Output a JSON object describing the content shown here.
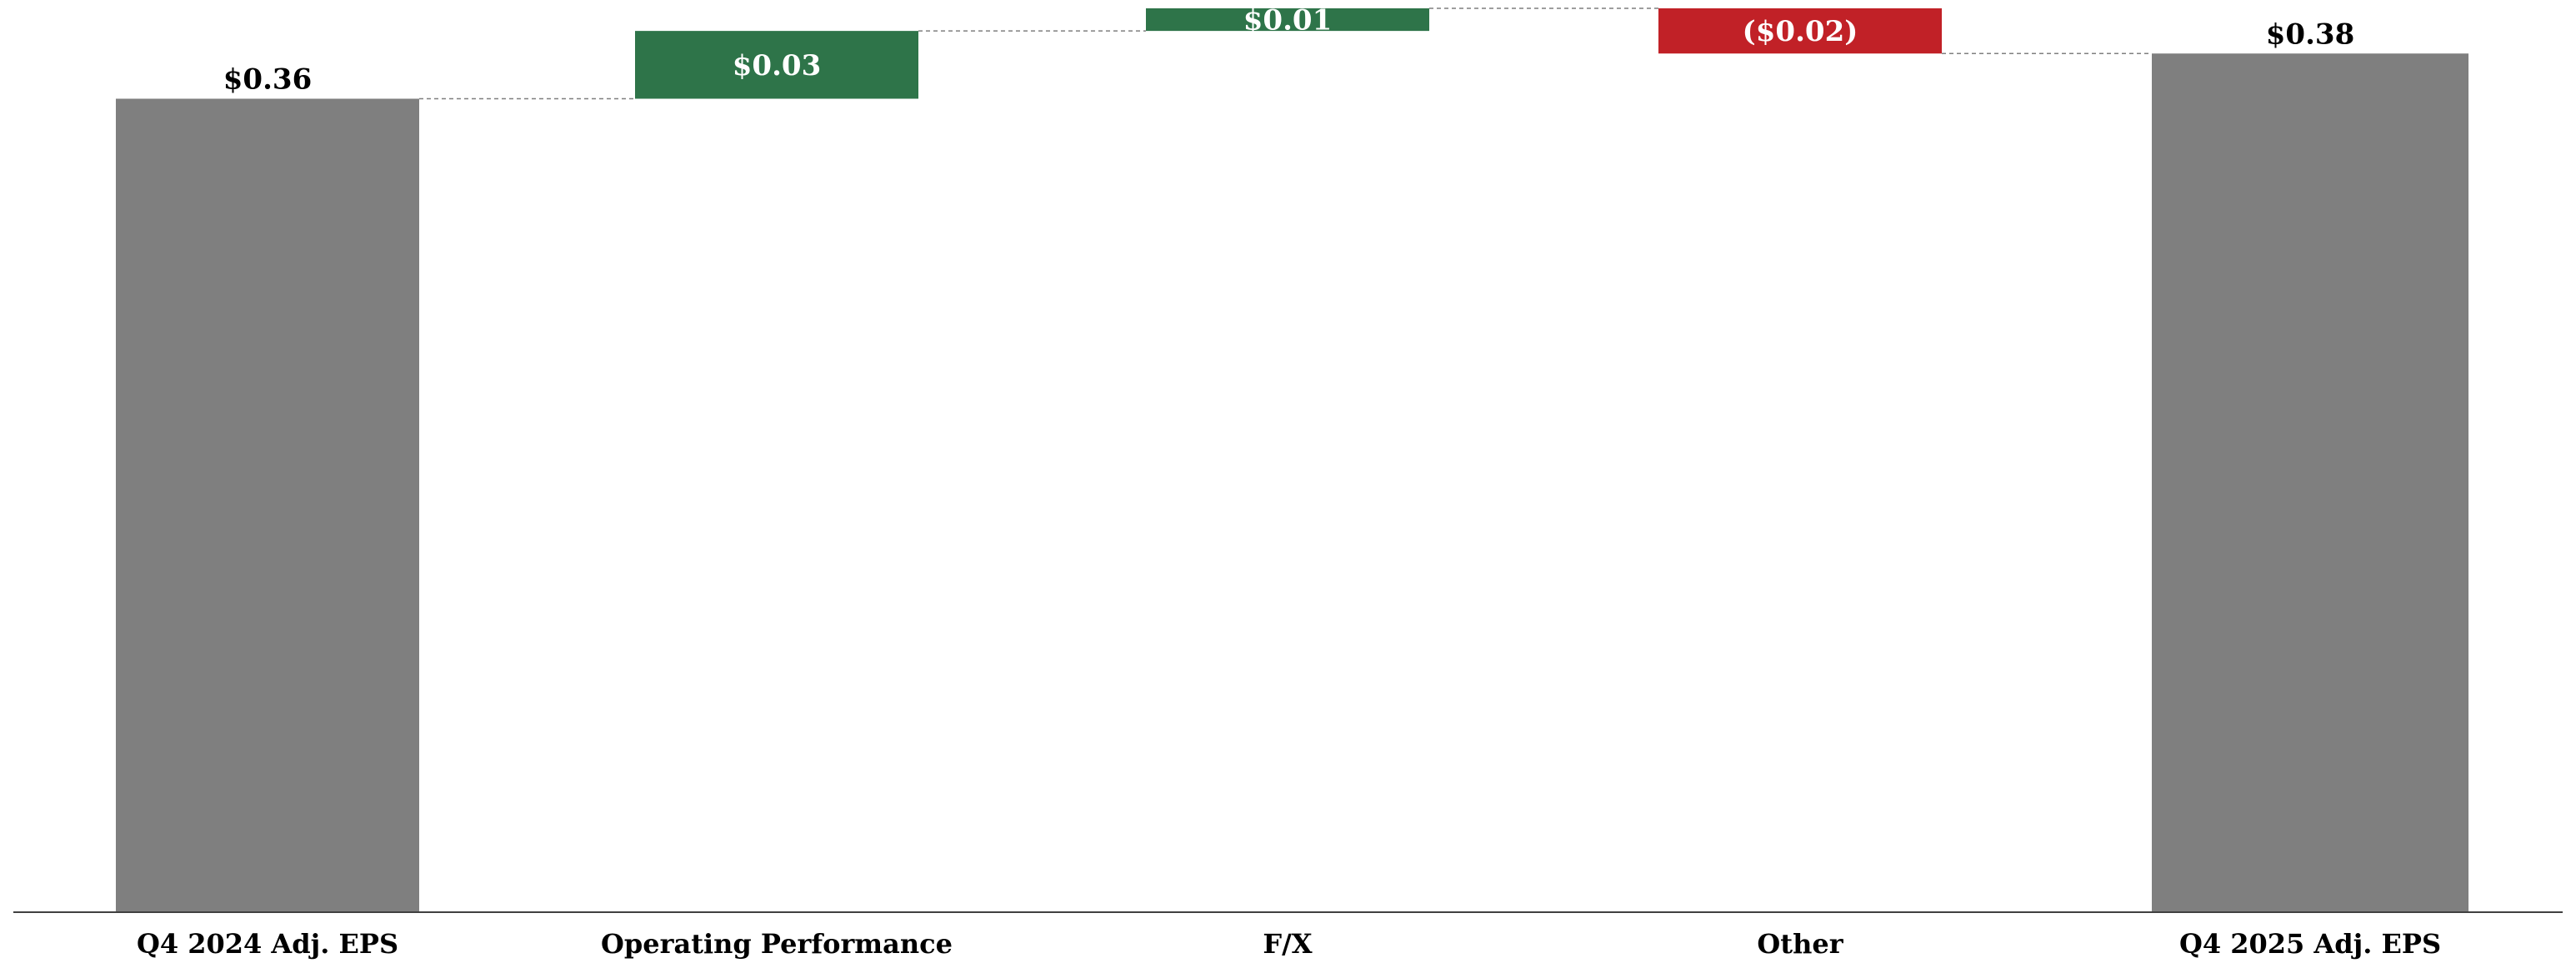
{
  "chart_data": {
    "type": "bar",
    "subtype": "waterfall",
    "categories": [
      "Q4 2024 Adj. EPS",
      "Operating Performance",
      "F/X",
      "Other",
      "Q4 2025 Adj. EPS"
    ],
    "values": [
      0.36,
      0.03,
      0.01,
      -0.02,
      0.38
    ],
    "kinds": [
      "total",
      "delta",
      "delta",
      "delta",
      "total"
    ],
    "data_labels": [
      "$0.36",
      "$0.03",
      "$0.01",
      "($0.02)",
      "$0.38"
    ],
    "ylim": [
      0,
      0.4
    ],
    "grid": false,
    "legend": "none",
    "colors": {
      "total": "#7f7f7f",
      "increase": "#2e7449",
      "decrease": "#c12127",
      "connector": "#7f7f7f",
      "axis": "#404040"
    }
  }
}
